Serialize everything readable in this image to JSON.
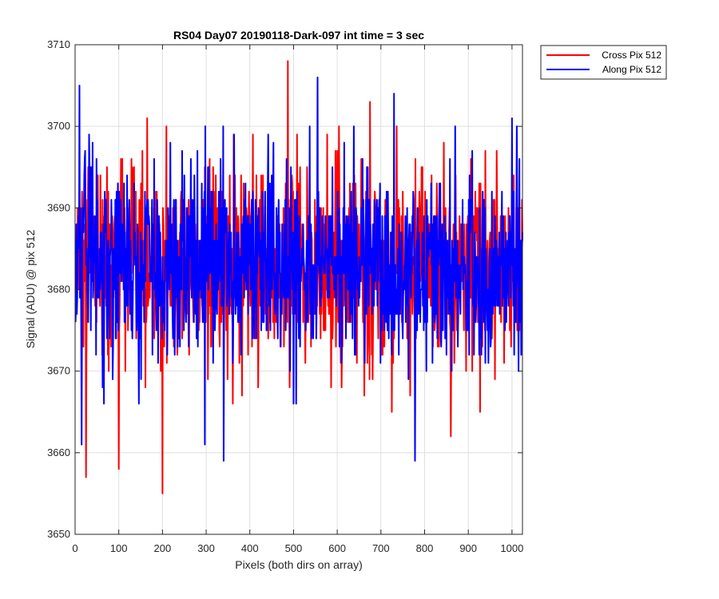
{
  "chart_data": {
    "type": "line",
    "title": "RS04 Day07 20190118-Dark-097 int time = 3 sec",
    "xlabel": "Pixels (both dirs on array)",
    "ylabel": "Signal (ADU) @ pix 512",
    "xlim": [
      0,
      1024
    ],
    "ylim": [
      3650,
      3710
    ],
    "x_ticks": [
      0,
      100,
      200,
      300,
      400,
      500,
      600,
      700,
      800,
      900,
      1000
    ],
    "y_ticks": [
      3650,
      3660,
      3670,
      3680,
      3690,
      3700,
      3710
    ],
    "grid": true,
    "legend_position": "outside top-right",
    "series": [
      {
        "name": "Cross Pix 512",
        "color": "#ff0000",
        "x_start": 1,
        "x_step": 1,
        "count": 1024,
        "mean": 3682.5,
        "std": 6.2,
        "annotated_extremes": [
          {
            "x": 487,
            "y": 3708
          },
          {
            "x": 25,
            "y": 3657
          },
          {
            "x": 100,
            "y": 3658
          },
          {
            "x": 200,
            "y": 3655
          },
          {
            "x": 860,
            "y": 3662
          },
          {
            "x": 165,
            "y": 3701
          },
          {
            "x": 675,
            "y": 3703
          }
        ]
      },
      {
        "name": "Along Pix 512",
        "color": "#0000ff",
        "x_start": 1,
        "x_step": 1,
        "count": 1024,
        "mean": 3683.0,
        "std": 6.0,
        "annotated_extremes": [
          {
            "x": 10,
            "y": 3705
          },
          {
            "x": 15,
            "y": 3661
          },
          {
            "x": 340,
            "y": 3659
          },
          {
            "x": 555,
            "y": 3706
          },
          {
            "x": 730,
            "y": 3704
          },
          {
            "x": 778,
            "y": 3659
          },
          {
            "x": 1000,
            "y": 3701
          },
          {
            "x": 297,
            "y": 3661
          }
        ]
      }
    ]
  }
}
